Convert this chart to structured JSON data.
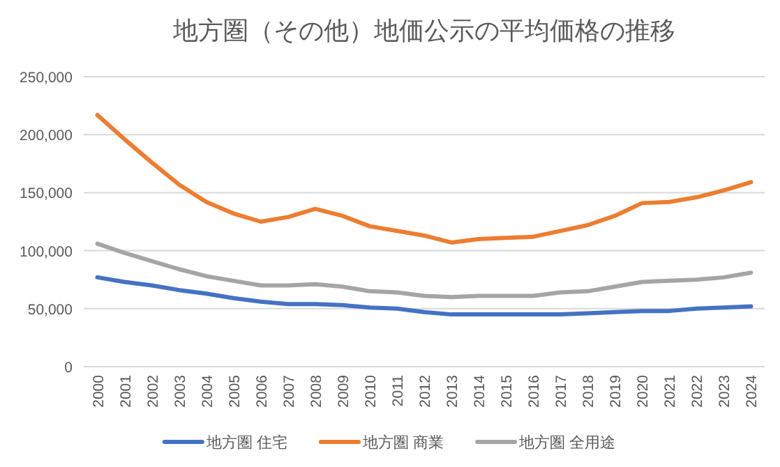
{
  "chart_data": {
    "type": "line",
    "title": "地方圏（その他）地価公示の平均価格の推移",
    "categories": [
      "2000",
      "2001",
      "2002",
      "2003",
      "2004",
      "2005",
      "2006",
      "2007",
      "2008",
      "2009",
      "2010",
      "2011",
      "2012",
      "2013",
      "2014",
      "2015",
      "2016",
      "2017",
      "2018",
      "2019",
      "2020",
      "2021",
      "2022",
      "2023",
      "2024"
    ],
    "series": [
      {
        "name": "地方圏 住宅",
        "color": "#4472c4",
        "values": [
          77000,
          73000,
          70000,
          66000,
          63000,
          59000,
          56000,
          54000,
          54000,
          53000,
          51000,
          50000,
          47000,
          45000,
          45000,
          45000,
          45000,
          45000,
          46000,
          47000,
          48000,
          48000,
          50000,
          51000,
          52000
        ]
      },
      {
        "name": "地方圏 商業",
        "color": "#ed7d31",
        "values": [
          217000,
          196000,
          176000,
          157000,
          142000,
          132000,
          125000,
          129000,
          136000,
          130000,
          121000,
          117000,
          113000,
          107000,
          110000,
          111000,
          112000,
          117000,
          122000,
          130000,
          141000,
          142000,
          146000,
          152000,
          159000
        ]
      },
      {
        "name": "地方圏 全用途",
        "color": "#a5a5a5",
        "values": [
          106000,
          98000,
          91000,
          84000,
          78000,
          74000,
          70000,
          70000,
          71000,
          69000,
          65000,
          64000,
          61000,
          60000,
          61000,
          61000,
          61000,
          64000,
          65000,
          69000,
          73000,
          74000,
          75000,
          77000,
          81000
        ]
      }
    ],
    "ylim": [
      0,
      250000
    ],
    "yticks": [
      {
        "value": 0,
        "label": "0"
      },
      {
        "value": 50000,
        "label": "50,000"
      },
      {
        "value": 100000,
        "label": "100,000"
      },
      {
        "value": 150000,
        "label": "150,000"
      },
      {
        "value": 200000,
        "label": "200,000"
      },
      {
        "value": 250000,
        "label": "250,000"
      }
    ],
    "grid": "y",
    "legend": "bottom",
    "marker": "none",
    "line_style": "solid"
  }
}
